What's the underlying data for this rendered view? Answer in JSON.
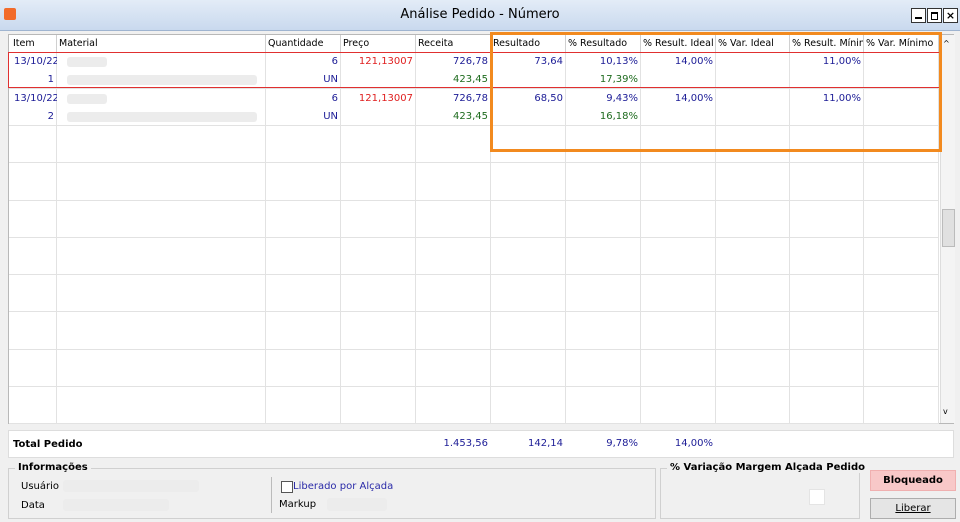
{
  "window": {
    "title": "Análise Pedido - Número"
  },
  "table": {
    "columns": [
      "Item",
      "Material",
      "Quantidade",
      "Preço",
      "Receita",
      "Resultado",
      "% Resultado",
      "% Result. Ideal",
      "% Var. Ideal",
      "% Result. Mínimo",
      "% Var. Mínimo"
    ],
    "rows": [
      [
        "13/10/22",
        null,
        "6",
        "121,13007",
        "726,78",
        "73,64",
        "10,13%",
        "14,00%",
        null,
        "11,00%",
        null
      ],
      [
        "1",
        null,
        "UN",
        null,
        "423,45",
        null,
        "17,39%",
        null,
        null,
        null,
        null
      ],
      [
        "13/10/22",
        null,
        "6",
        "121,13007",
        "726,78",
        "68,50",
        "9,43%",
        "14,00%",
        null,
        "11,00%",
        null
      ],
      [
        "2",
        null,
        "UN",
        null,
        "423,45",
        null,
        "16,18%",
        null,
        null,
        null,
        null
      ]
    ]
  },
  "total": {
    "label": "Total Pedido",
    "cells": [
      null,
      null,
      null,
      null,
      "1.453,56",
      "142,14",
      "9,78%",
      "14,00%",
      null,
      null,
      null
    ]
  },
  "info": {
    "title": "Informações",
    "user_label": "Usuário",
    "date_label": "Data",
    "checkbox_label": "Liberado por Alçada",
    "markup_label": "Markup"
  },
  "variation": {
    "title": "% Variação Margem Alçada Pedido"
  },
  "status_button": "Bloqueado",
  "release_button": "Liberar"
}
